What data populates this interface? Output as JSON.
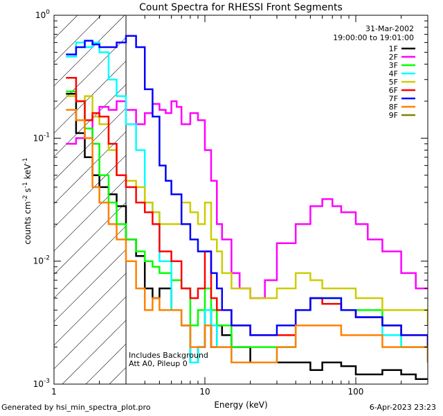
{
  "chart_data": {
    "type": "line",
    "title": "Count Spectra for RHESSI Front Segments",
    "xlabel": "Energy (keV)",
    "ylabel_parts": [
      "counts cm",
      "-2",
      " s",
      "-1",
      " keV",
      "-1"
    ],
    "xscale": "log",
    "yscale": "log",
    "xlim": [
      1,
      300
    ],
    "ylim": [
      0.001,
      1
    ],
    "x_tick_labels": [
      {
        "value": 1,
        "label": "1"
      },
      {
        "value": 10,
        "label": "10"
      },
      {
        "value": 100,
        "label": "100"
      }
    ],
    "y_tick_labels": [
      {
        "value": 1,
        "base": "10",
        "exp": "0"
      },
      {
        "value": 0.1,
        "base": "10",
        "exp": "-1"
      },
      {
        "value": 0.01,
        "base": "10",
        "exp": "-2"
      },
      {
        "value": 0.001,
        "base": "10",
        "exp": "-3"
      }
    ],
    "date": "31-Mar-2002",
    "time_range": "19:00:00 to 19:01:00",
    "annotations": [
      "Includes Background",
      "Att A0, Pileup 0"
    ],
    "hatched_below_kev": 3,
    "series": [
      {
        "name": "1F",
        "color": "#000000",
        "x": [
          1.2,
          1.4,
          1.6,
          1.8,
          2.0,
          2.3,
          2.6,
          3.0,
          3.5,
          4.0,
          4.5,
          5.0,
          6.0,
          7.0,
          8.0,
          9.0,
          10.0,
          11.0,
          12.0,
          13.0,
          15.0,
          20.0,
          30.0,
          40.0,
          50.0,
          60.0,
          80.0,
          100.0,
          150.0,
          200.0,
          250.0,
          300.0
        ],
        "y": [
          0.23,
          0.11,
          0.07,
          0.05,
          0.04,
          0.035,
          0.028,
          0.015,
          0.011,
          0.006,
          0.005,
          0.006,
          0.004,
          0.003,
          0.0015,
          0.002,
          0.004,
          0.002,
          0.003,
          0.0025,
          0.002,
          0.0015,
          0.0015,
          0.0015,
          0.0013,
          0.0015,
          0.0014,
          0.0012,
          0.0013,
          0.0012,
          0.0011,
          0.0011
        ]
      },
      {
        "name": "2F",
        "color": "#ff00ff",
        "x": [
          1.2,
          1.4,
          1.6,
          1.8,
          2.0,
          2.3,
          2.6,
          3.0,
          3.5,
          4.0,
          4.5,
          5.0,
          5.5,
          6.0,
          6.5,
          7.0,
          8.0,
          9.0,
          10.0,
          11.0,
          12.0,
          13.0,
          15.0,
          17.0,
          20.0,
          25.0,
          30.0,
          40.0,
          50.0,
          60.0,
          70.0,
          80.0,
          100.0,
          120.0,
          150.0,
          200.0,
          250.0,
          300.0
        ],
        "y": [
          0.09,
          0.1,
          0.1,
          0.15,
          0.18,
          0.17,
          0.2,
          0.17,
          0.13,
          0.16,
          0.19,
          0.17,
          0.16,
          0.2,
          0.18,
          0.13,
          0.16,
          0.14,
          0.08,
          0.045,
          0.02,
          0.015,
          0.008,
          0.006,
          0.005,
          0.007,
          0.014,
          0.02,
          0.028,
          0.032,
          0.028,
          0.025,
          0.02,
          0.015,
          0.012,
          0.008,
          0.006,
          0.006
        ]
      },
      {
        "name": "3F",
        "color": "#00ff00",
        "x": [
          1.2,
          1.4,
          1.6,
          1.8,
          2.0,
          2.3,
          2.6,
          3.0,
          3.5,
          4.0,
          4.5,
          5.0,
          6.0,
          7.0,
          8.0,
          9.0,
          10.0,
          11.0,
          12.0,
          15.0,
          20.0,
          30.0,
          40.0,
          50.0,
          60.0,
          80.0,
          100.0,
          150.0,
          200.0,
          300.0
        ],
        "y": [
          0.24,
          0.2,
          0.12,
          0.09,
          0.05,
          0.03,
          0.02,
          0.015,
          0.012,
          0.01,
          0.009,
          0.008,
          0.007,
          0.006,
          0.003,
          0.004,
          0.006,
          0.004,
          0.003,
          0.002,
          0.002,
          0.002,
          0.004,
          0.005,
          0.005,
          0.004,
          0.004,
          0.003,
          0.002,
          0.0015
        ]
      },
      {
        "name": "4F",
        "color": "#00ffff",
        "x": [
          1.2,
          1.4,
          1.6,
          1.8,
          2.0,
          2.3,
          2.6,
          3.0,
          3.5,
          4.0,
          4.5,
          5.0,
          6.0,
          7.0,
          8.0,
          9.0,
          10.0,
          11.0,
          12.0,
          15.0,
          20.0,
          30.0,
          40.0,
          50.0,
          60.0,
          80.0,
          100.0,
          150.0,
          200.0,
          300.0
        ],
        "y": [
          0.46,
          0.6,
          0.55,
          0.6,
          0.5,
          0.3,
          0.22,
          0.13,
          0.08,
          0.03,
          0.025,
          0.01,
          0.004,
          0.003,
          0.0015,
          0.002,
          0.004,
          0.003,
          0.002,
          0.0015,
          0.0015,
          0.002,
          0.004,
          0.005,
          0.0045,
          0.004,
          0.0035,
          0.0025,
          0.002,
          0.0015
        ]
      },
      {
        "name": "5F",
        "color": "#cccc00",
        "x": [
          1.2,
          1.4,
          1.6,
          1.8,
          2.0,
          2.3,
          2.6,
          3.0,
          3.5,
          4.0,
          4.5,
          5.0,
          6.0,
          7.0,
          8.0,
          9.0,
          10.0,
          11.0,
          12.0,
          13.0,
          15.0,
          20.0,
          25.0,
          30.0,
          40.0,
          50.0,
          60.0,
          80.0,
          100.0,
          150.0,
          200.0,
          300.0
        ],
        "y": [
          0.22,
          0.2,
          0.22,
          0.15,
          0.13,
          0.08,
          0.05,
          0.045,
          0.04,
          0.03,
          0.025,
          0.02,
          0.02,
          0.03,
          0.025,
          0.02,
          0.03,
          0.015,
          0.012,
          0.008,
          0.006,
          0.005,
          0.005,
          0.006,
          0.008,
          0.007,
          0.006,
          0.006,
          0.005,
          0.004,
          0.004,
          0.003
        ]
      },
      {
        "name": "6F",
        "color": "#ff0000",
        "x": [
          1.2,
          1.4,
          1.6,
          1.8,
          2.0,
          2.3,
          2.6,
          3.0,
          3.5,
          4.0,
          4.5,
          5.0,
          6.0,
          7.0,
          8.0,
          9.0,
          10.0,
          11.0,
          12.0,
          15.0,
          20.0,
          30.0,
          40.0,
          50.0,
          60.0,
          80.0,
          100.0,
          150.0,
          200.0,
          300.0
        ],
        "y": [
          0.31,
          0.2,
          0.14,
          0.16,
          0.15,
          0.09,
          0.05,
          0.04,
          0.03,
          0.025,
          0.02,
          0.012,
          0.01,
          0.006,
          0.005,
          0.006,
          0.012,
          0.005,
          0.004,
          0.003,
          0.0025,
          0.0025,
          0.004,
          0.005,
          0.0045,
          0.004,
          0.0035,
          0.003,
          0.0025,
          0.002
        ]
      },
      {
        "name": "7F",
        "color": "#0000ff",
        "x": [
          1.2,
          1.4,
          1.6,
          1.8,
          2.0,
          2.3,
          2.6,
          3.0,
          3.5,
          4.0,
          4.5,
          5.0,
          5.5,
          6.0,
          7.0,
          8.0,
          9.0,
          10.0,
          11.0,
          12.0,
          13.0,
          15.0,
          20.0,
          30.0,
          40.0,
          50.0,
          60.0,
          80.0,
          100.0,
          150.0,
          200.0,
          300.0
        ],
        "y": [
          0.48,
          0.55,
          0.62,
          0.58,
          0.55,
          0.55,
          0.6,
          0.68,
          0.55,
          0.25,
          0.15,
          0.06,
          0.045,
          0.035,
          0.02,
          0.015,
          0.012,
          0.012,
          0.008,
          0.006,
          0.004,
          0.003,
          0.0025,
          0.003,
          0.004,
          0.005,
          0.005,
          0.004,
          0.0035,
          0.003,
          0.0025,
          0.002
        ]
      },
      {
        "name": "8F",
        "color": "#ff8000",
        "x": [
          1.2,
          1.4,
          1.6,
          1.8,
          2.0,
          2.3,
          2.6,
          3.0,
          3.5,
          4.0,
          4.5,
          5.0,
          6.0,
          7.0,
          8.0,
          9.0,
          10.0,
          11.0,
          12.0,
          15.0,
          20.0,
          30.0,
          40.0,
          50.0,
          60.0,
          80.0,
          100.0,
          150.0,
          200.0,
          300.0
        ],
        "y": [
          0.17,
          0.14,
          0.1,
          0.04,
          0.03,
          0.02,
          0.015,
          0.01,
          0.006,
          0.004,
          0.005,
          0.004,
          0.004,
          0.003,
          0.002,
          0.002,
          0.003,
          0.002,
          0.002,
          0.0015,
          0.0015,
          0.002,
          0.003,
          0.003,
          0.003,
          0.0025,
          0.0025,
          0.002,
          0.002,
          0.0015
        ]
      },
      {
        "name": "9F",
        "color": "#808000",
        "x": [],
        "y": []
      }
    ]
  },
  "footer": {
    "generated_by": "Generated by hsi_min_spectra_plot.pro",
    "timestamp": "6-Apr-2023 23:23"
  }
}
